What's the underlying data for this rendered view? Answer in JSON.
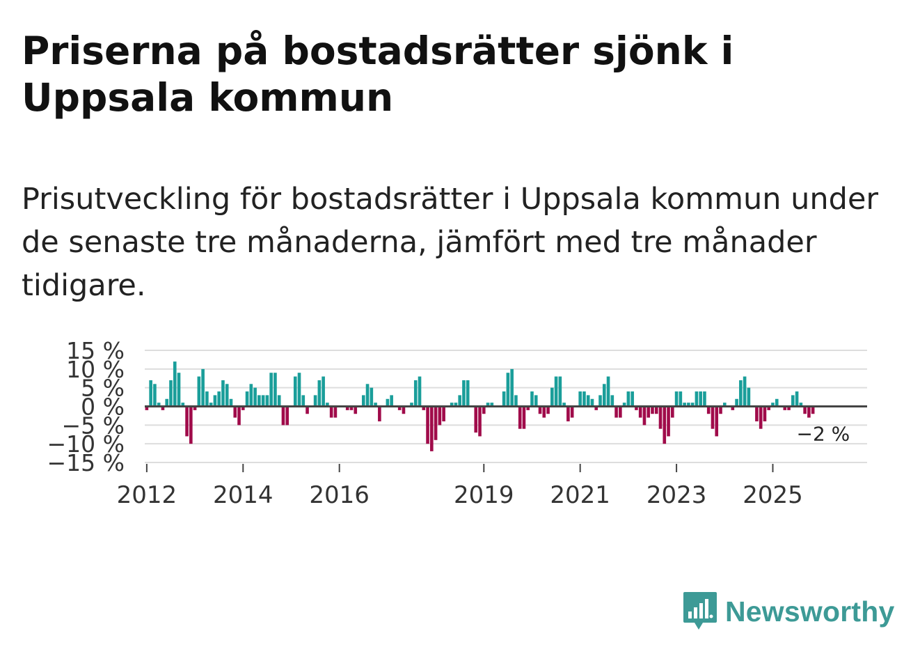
{
  "title": "Priserna på bostadsrätter sjönk i Uppsala kommun",
  "subtitle": "Prisutveckling för bostadsrätter i Uppsala kommun under de senaste tre månaderna, jämfört med tre månader tidigare.",
  "brand": {
    "name": "Newsworthy",
    "color": "#3d9a96"
  },
  "colors": {
    "positive": "#1a9e9a",
    "negative": "#a00b4a",
    "zero_line": "#444444",
    "grid": "#dddddd",
    "text": "#333333"
  },
  "chart_data": {
    "type": "bar",
    "title": "",
    "xlabel": "",
    "ylabel": "",
    "ylim": [
      -15,
      15
    ],
    "grid": true,
    "yticks": [
      15,
      10,
      5,
      0,
      -5,
      -10,
      -15
    ],
    "ytick_labels": [
      "15 %",
      "10 %",
      "5 %",
      "0 %",
      "−5 %",
      "−10 %",
      "−15 %"
    ],
    "xticks": [
      "2012",
      "2014",
      "2016",
      "2019",
      "2021",
      "2023",
      "2025"
    ],
    "x_start": {
      "year": 2012,
      "month": 1
    },
    "x_end": {
      "year": 2026,
      "month": 12
    },
    "last_value_label": "−2 %",
    "series": [
      {
        "name": "Prisutveckling",
        "start": {
          "year": 2012,
          "month": 1
        },
        "values": [
          -1,
          7,
          6,
          1,
          -1,
          2,
          7,
          12,
          9,
          1,
          -8,
          -10,
          -1,
          8,
          10,
          4,
          1,
          3,
          4,
          7,
          6,
          2,
          -3,
          -5,
          -1,
          4,
          6,
          5,
          3,
          3,
          3,
          9,
          9,
          3,
          -5,
          -5,
          0,
          8,
          9,
          3,
          -2,
          0,
          3,
          7,
          8,
          1,
          -3,
          -3,
          0,
          0,
          -1,
          -1,
          -2,
          0,
          3,
          6,
          5,
          1,
          -4,
          0,
          2,
          3,
          0,
          -1,
          -2,
          0,
          1,
          7,
          8,
          -1,
          -10,
          -12,
          -9,
          -5,
          -4,
          0,
          1,
          1,
          3,
          7,
          7,
          0,
          -7,
          -8,
          -2,
          1,
          1,
          0,
          0,
          4,
          9,
          10,
          3,
          -6,
          -6,
          -1,
          4,
          3,
          -2,
          -3,
          -2,
          5,
          8,
          8,
          1,
          -4,
          -3,
          0,
          4,
          4,
          3,
          2,
          -1,
          3,
          6,
          8,
          3,
          -3,
          -3,
          1,
          4,
          4,
          -1,
          -3,
          -5,
          -3,
          -2,
          -2,
          -6,
          -10,
          -8,
          -3,
          4,
          4,
          1,
          1,
          1,
          4,
          4,
          4,
          -2,
          -6,
          -8,
          -2,
          1,
          0,
          -1,
          2,
          7,
          8,
          5,
          0,
          -4,
          -6,
          -4,
          -1,
          1,
          2,
          0,
          -1,
          -1,
          3,
          4,
          1,
          -2,
          -3,
          -2
        ]
      }
    ]
  }
}
